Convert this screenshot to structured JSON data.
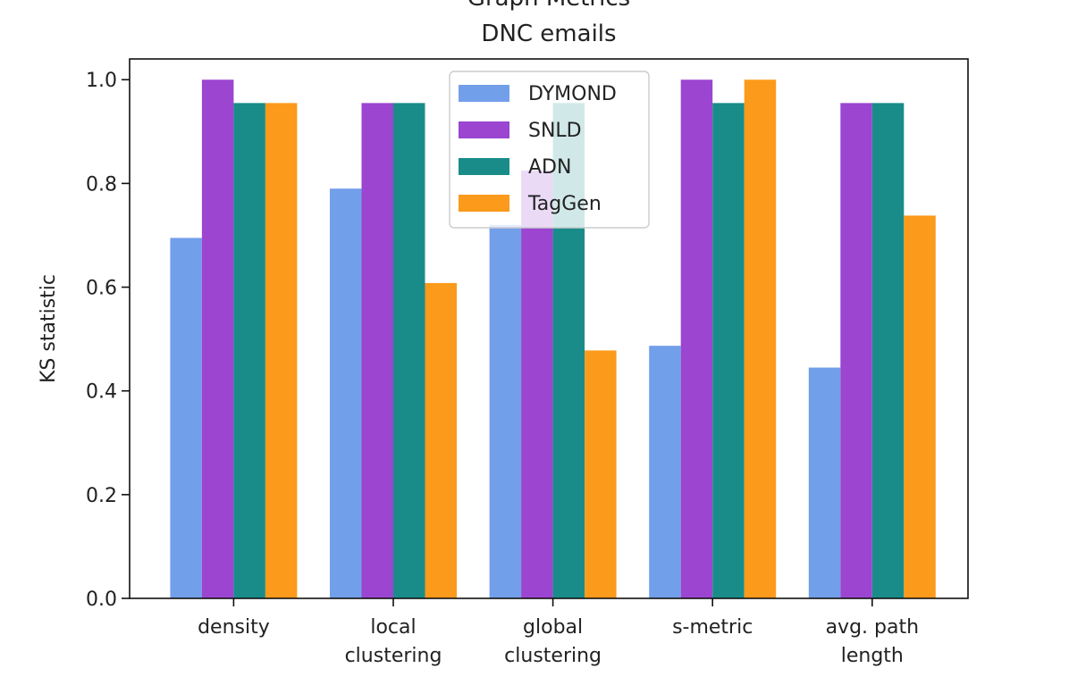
{
  "chart_data": {
    "type": "bar",
    "title": [
      "Graph Metrics",
      "DNC emails"
    ],
    "xlabel": "",
    "ylabel": "KS statistic",
    "ylim": [
      0,
      1.04
    ],
    "yticks": [
      0.0,
      0.2,
      0.4,
      0.6,
      0.8,
      1.0
    ],
    "ytick_labels": [
      "0.0",
      "0.2",
      "0.4",
      "0.6",
      "0.8",
      "1.0"
    ],
    "categories": [
      [
        "density"
      ],
      [
        "local",
        "clustering"
      ],
      [
        "global",
        "clustering"
      ],
      [
        "s-metric"
      ],
      [
        "avg. path",
        "length"
      ]
    ],
    "series": [
      {
        "name": "DYMOND",
        "color": "#729fea",
        "values": [
          0.695,
          0.79,
          0.72,
          0.487,
          0.445
        ]
      },
      {
        "name": "SNLD",
        "color": "#9b45d1",
        "values": [
          1.0,
          0.955,
          0.825,
          1.0,
          0.955
        ]
      },
      {
        "name": "ADN",
        "color": "#198c8a",
        "values": [
          0.955,
          0.955,
          0.955,
          0.955,
          0.955
        ]
      },
      {
        "name": "TagGen",
        "color": "#fb9a1b",
        "values": [
          0.955,
          0.608,
          0.478,
          1.0,
          0.738
        ]
      }
    ],
    "legend_position": "upper-center",
    "grid": false
  }
}
